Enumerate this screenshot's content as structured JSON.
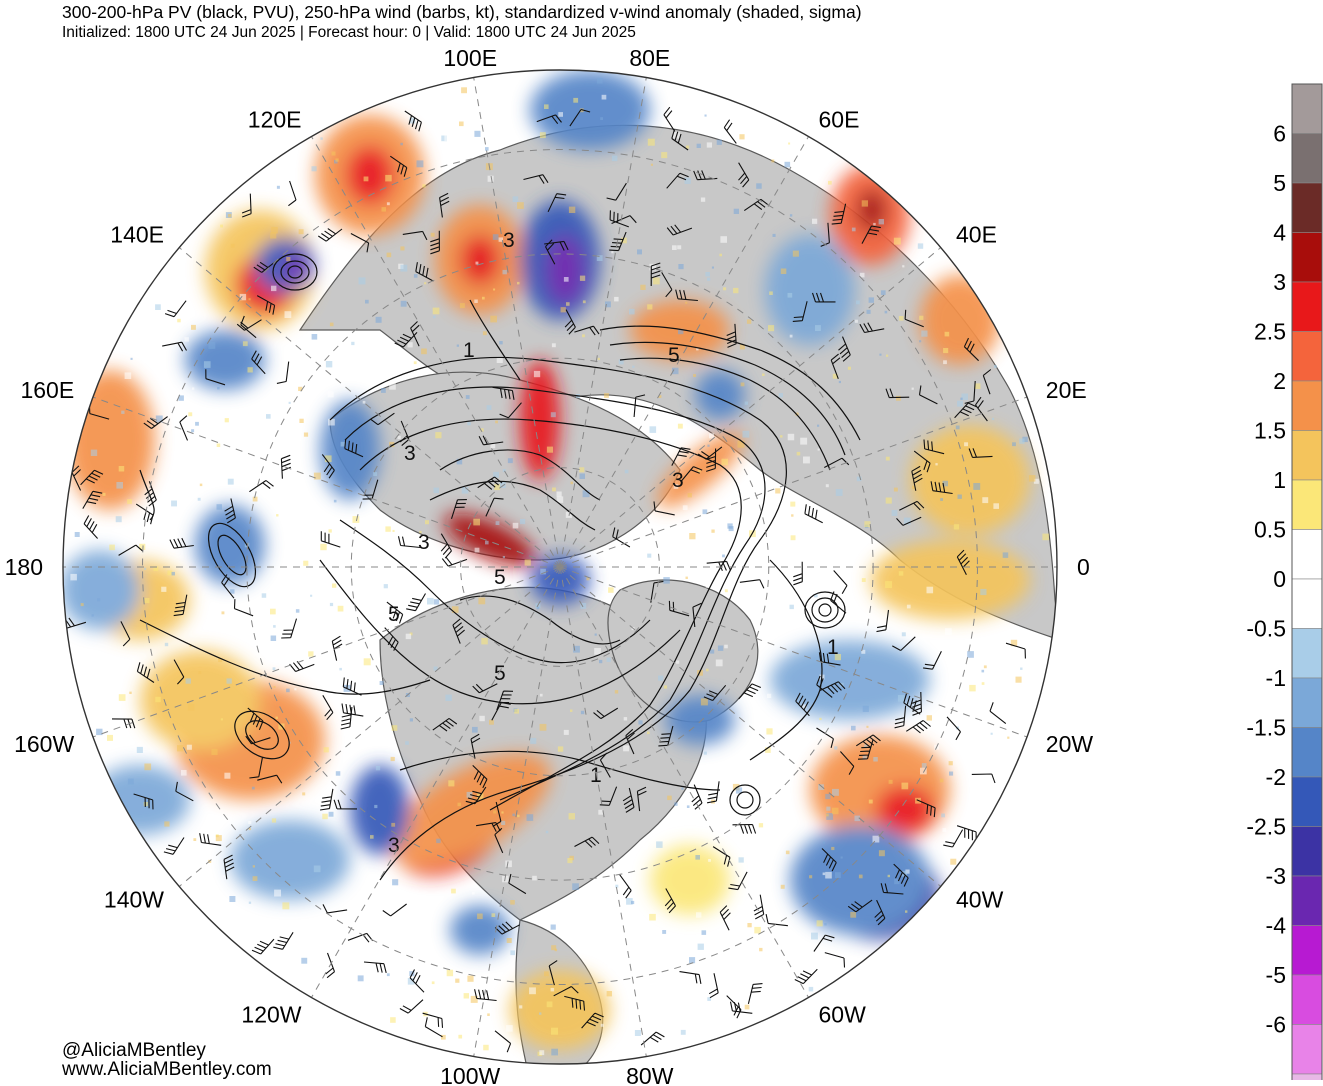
{
  "header": {
    "title": "300-200-hPa PV (black, PVU), 250-hPa wind (barbs, kt), standardized v-wind anomaly (shaded, sigma)",
    "subtitle": "Initialized: 1800 UTC 24 Jun 2025 | Forecast hour: 0 | Valid: 1800 UTC 24 Jun 2025"
  },
  "credits": {
    "handle": "@AliciaMBentley",
    "website": "www.AliciaMBentley.com"
  },
  "map": {
    "projection": "north polar stereographic",
    "longitude_labels": [
      {
        "text": "0",
        "lon": 0
      },
      {
        "text": "20E",
        "lon": 20
      },
      {
        "text": "40E",
        "lon": 40
      },
      {
        "text": "60E",
        "lon": 60
      },
      {
        "text": "80E",
        "lon": 80
      },
      {
        "text": "100E",
        "lon": 100
      },
      {
        "text": "120E",
        "lon": 120
      },
      {
        "text": "140E",
        "lon": 140
      },
      {
        "text": "160E",
        "lon": 160
      },
      {
        "text": "180",
        "lon": 180
      },
      {
        "text": "160W",
        "lon": 200
      },
      {
        "text": "140W",
        "lon": 220
      },
      {
        "text": "120W",
        "lon": 240
      },
      {
        "text": "100W",
        "lon": 260
      },
      {
        "text": "80W",
        "lon": 280
      },
      {
        "text": "60W",
        "lon": 300
      },
      {
        "text": "40W",
        "lon": 320
      },
      {
        "text": "20W",
        "lon": 340
      }
    ],
    "pv_contour_labels": [
      "3",
      "1",
      "5",
      "3",
      "3",
      "3",
      "5",
      "5",
      "5",
      "1",
      "3",
      "1"
    ]
  },
  "colorbar": {
    "unit": "sigma",
    "levels": [
      {
        "label": "6",
        "color": "#a39a9a"
      },
      {
        "label": "5",
        "color": "#7a7070"
      },
      {
        "label": "4",
        "color": "#6b2b27"
      },
      {
        "label": "3",
        "color": "#a80d0b"
      },
      {
        "label": "2.5",
        "color": "#e8181a"
      },
      {
        "label": "2",
        "color": "#f4643c"
      },
      {
        "label": "1.5",
        "color": "#f4914a"
      },
      {
        "label": "1",
        "color": "#f4c45c"
      },
      {
        "label": "0.5",
        "color": "#fbe778"
      },
      {
        "label": "0",
        "color": "#ffffff"
      },
      {
        "label": "-0.5",
        "color": "#ffffff"
      },
      {
        "label": "-1",
        "color": "#a9cde8"
      },
      {
        "label": "-1.5",
        "color": "#7ba8d8"
      },
      {
        "label": "-2",
        "color": "#5585c8"
      },
      {
        "label": "-2.5",
        "color": "#3458b8"
      },
      {
        "label": "-3",
        "color": "#3c33a4"
      },
      {
        "label": "-4",
        "color": "#6a27b0"
      },
      {
        "label": "-5",
        "color": "#b71ad2"
      },
      {
        "label": "-6",
        "color": "#d84ce0"
      },
      {
        "label": "",
        "color": "#e883e8"
      },
      {
        "label": "",
        "color": "#e7b8e6"
      }
    ]
  },
  "palette": {
    "land": "#c8c8c8",
    "coast": "#555555",
    "contour": "#111111",
    "grid": "#888888"
  }
}
